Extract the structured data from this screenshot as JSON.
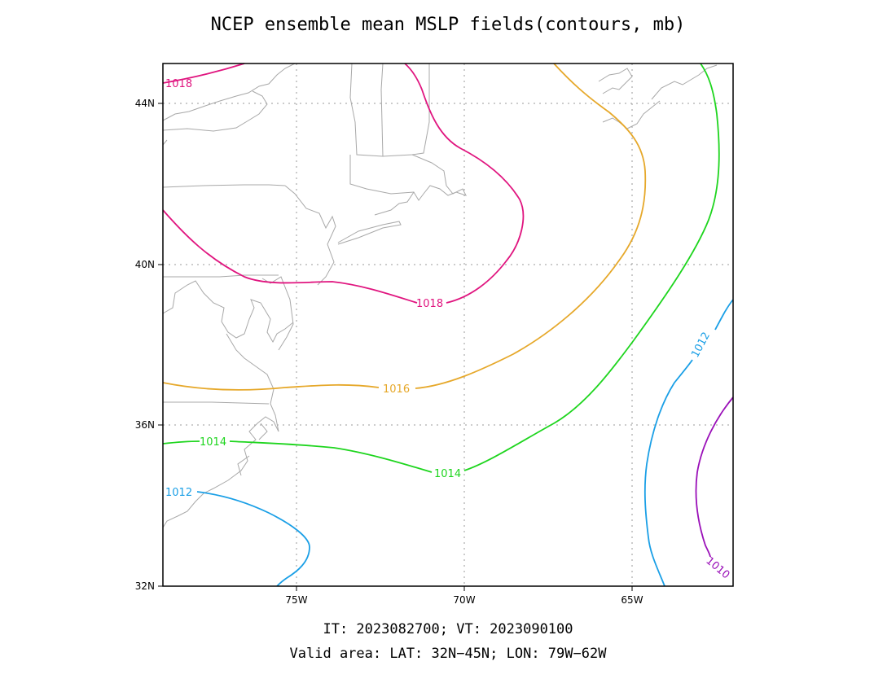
{
  "title": "NCEP ensemble mean MSLP fields(contours, mb)",
  "footer": {
    "line1": "IT: 2023082700; VT: 2023090100",
    "line2": "Valid area: LAT: 32N−45N; LON: 79W−62W"
  },
  "map": {
    "lat_range": [
      32,
      45
    ],
    "lon_range": [
      -79,
      -62
    ],
    "lat_ticks": [
      {
        "value": 32,
        "label": "32N"
      },
      {
        "value": 36,
        "label": "36N"
      },
      {
        "value": 40,
        "label": "40N"
      },
      {
        "value": 44,
        "label": "44N"
      }
    ],
    "lon_ticks": [
      {
        "value": -75,
        "label": "75W"
      },
      {
        "value": -70,
        "label": "70W"
      },
      {
        "value": -65,
        "label": "65W"
      }
    ],
    "gridlines": "dotted",
    "contours": [
      {
        "level": "1018",
        "color": "#e0157f"
      },
      {
        "level": "1016",
        "color": "#e6a82a"
      },
      {
        "level": "1014",
        "color": "#1ed51e"
      },
      {
        "level": "1012",
        "color": "#1a9fe6"
      },
      {
        "level": "1010",
        "color": "#9a10b8"
      }
    ]
  }
}
